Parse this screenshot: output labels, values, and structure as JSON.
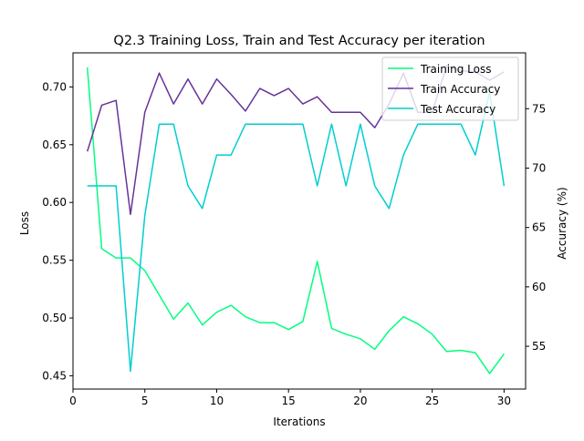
{
  "chart_data": {
    "type": "line",
    "title": "Q2.3 Training Loss, Train and Test Accuracy per iteration",
    "xlabel": "Iterations",
    "ylabel_left": "Loss",
    "ylabel_right": "Accuracy (%)",
    "xlim": [
      0.0,
      31.5
    ],
    "ylim_left": [
      0.4385,
      0.7295
    ],
    "ylim_right": [
      51.4,
      79.7
    ],
    "x_ticks": [
      0,
      5,
      10,
      15,
      20,
      25,
      30
    ],
    "y_ticks_left": [
      0.45,
      0.5,
      0.55,
      0.6,
      0.65,
      0.7
    ],
    "y_ticks_right": [
      55,
      60,
      65,
      70,
      75
    ],
    "x": [
      1,
      2,
      3,
      4,
      5,
      6,
      7,
      8,
      9,
      10,
      11,
      12,
      13,
      14,
      15,
      16,
      17,
      18,
      19,
      20,
      21,
      22,
      23,
      24,
      25,
      26,
      27,
      28,
      29,
      30
    ],
    "legend": "top-right",
    "series": [
      {
        "name": "Training Loss",
        "axis": "left",
        "color": "#00ff7f",
        "values": [
          0.717,
          0.56,
          0.552,
          0.552,
          0.541,
          0.52,
          0.499,
          0.513,
          0.494,
          0.505,
          0.511,
          0.501,
          0.496,
          0.496,
          0.49,
          0.497,
          0.549,
          0.491,
          0.486,
          0.482,
          0.473,
          0.489,
          0.501,
          0.495,
          0.486,
          0.471,
          0.472,
          0.47,
          0.452,
          0.469
        ]
      },
      {
        "name": "Train Accuracy",
        "axis": "right",
        "color": "#663399",
        "values": [
          71.4,
          75.3,
          75.7,
          66.1,
          74.7,
          78.0,
          75.4,
          77.5,
          75.4,
          77.5,
          76.2,
          74.8,
          76.7,
          76.1,
          76.7,
          75.4,
          76.0,
          74.7,
          74.7,
          74.7,
          73.4,
          75.4,
          78.0,
          74.7,
          74.7,
          78.6,
          78.2,
          78.1,
          77.4,
          78.1
        ]
      },
      {
        "name": "Test Accuracy",
        "axis": "right",
        "color": "#00ced1",
        "values": [
          68.5,
          68.5,
          68.5,
          52.9,
          66.0,
          73.7,
          73.7,
          68.5,
          66.6,
          71.1,
          71.1,
          73.7,
          73.7,
          73.7,
          73.7,
          73.7,
          68.5,
          73.7,
          68.5,
          73.7,
          68.5,
          66.6,
          71.1,
          73.7,
          73.7,
          73.7,
          73.7,
          71.1,
          76.4,
          68.5
        ]
      }
    ]
  }
}
